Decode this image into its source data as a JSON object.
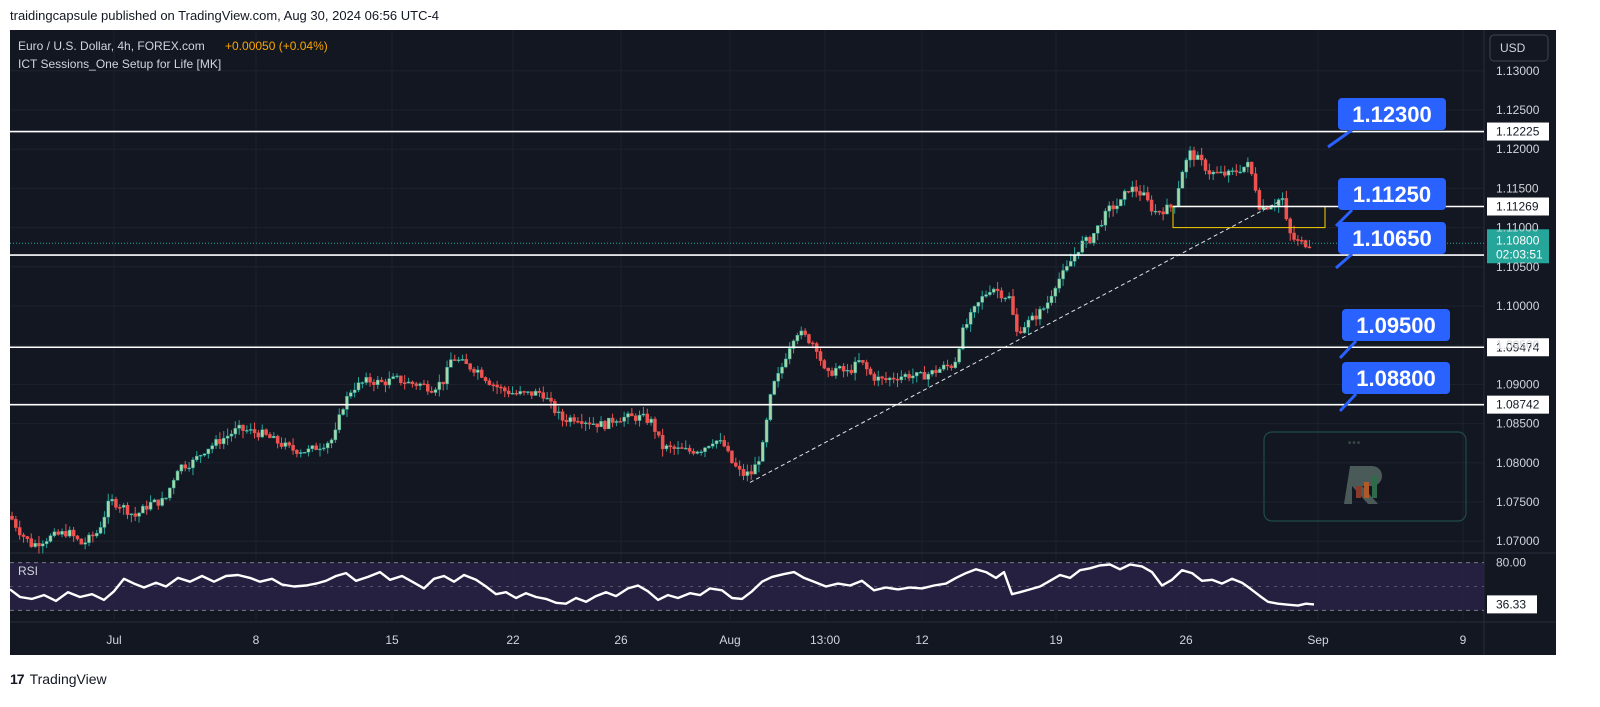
{
  "header": {
    "published_text": "traidingcapsule published on TradingView.com, Aug 30, 2024 06:56 UTC-4"
  },
  "legend": {
    "symbol_text": "Euro / U.S. Dollar, 4h, FOREX.com",
    "change_text": "+0.00050 (+0.04%)",
    "indicator_text": "ICT Sessions_One Setup for Life [MK]"
  },
  "currency_button": "USD",
  "rsi_label": "RSI",
  "footer": {
    "logo_mark": "17",
    "brand": "TradingView"
  },
  "colors": {
    "background": "#131722",
    "up": "#26a69a",
    "up_body": "#a5d6a7",
    "down": "#ef5350",
    "label_blue": "#2962ff",
    "rsi_band": "#2a2348",
    "change_orange": "#f7a600",
    "price_tag": "#26a69a"
  },
  "chart_data": {
    "type": "candlestick",
    "symbol": "EURUSD",
    "timeframe": "4h",
    "y_axis": {
      "ticks": [
        "1.13000",
        "1.12500",
        "1.12000",
        "1.11500",
        "1.11000",
        "1.10500",
        "1.10000",
        "1.09500",
        "1.09000",
        "1.08500",
        "1.08000",
        "1.07500",
        "1.07000"
      ],
      "ylim": [
        1.0685,
        1.1352
      ]
    },
    "x_axis": {
      "ticks": [
        "Jul",
        "8",
        "15",
        "22",
        "26",
        "Aug",
        "13:00",
        "12",
        "19",
        "26",
        "Sep",
        "9"
      ]
    },
    "price_path": [
      [
        0,
        1.0732
      ],
      [
        10,
        1.0712
      ],
      [
        22,
        1.0695
      ],
      [
        40,
        1.0705
      ],
      [
        58,
        1.0712
      ],
      [
        72,
        1.0696
      ],
      [
        88,
        1.0712
      ],
      [
        100,
        1.0752
      ],
      [
        112,
        1.0745
      ],
      [
        125,
        1.0732
      ],
      [
        140,
        1.0748
      ],
      [
        155,
        1.0752
      ],
      [
        168,
        1.0795
      ],
      [
        182,
        1.08
      ],
      [
        196,
        1.0818
      ],
      [
        212,
        1.083
      ],
      [
        228,
        1.0843
      ],
      [
        240,
        1.084
      ],
      [
        252,
        1.0837
      ],
      [
        268,
        1.0826
      ],
      [
        282,
        1.0817
      ],
      [
        298,
        1.0815
      ],
      [
        312,
        1.0823
      ],
      [
        324,
        1.0831
      ],
      [
        332,
        1.087
      ],
      [
        342,
        1.0895
      ],
      [
        358,
        1.0905
      ],
      [
        372,
        1.0902
      ],
      [
        386,
        1.0907
      ],
      [
        398,
        1.0902
      ],
      [
        410,
        1.09
      ],
      [
        422,
        1.0895
      ],
      [
        434,
        1.0905
      ],
      [
        442,
        1.0935
      ],
      [
        455,
        1.0925
      ],
      [
        468,
        1.0918
      ],
      [
        480,
        1.0903
      ],
      [
        492,
        1.0893
      ],
      [
        506,
        1.0888
      ],
      [
        520,
        1.0888
      ],
      [
        532,
        1.089
      ],
      [
        540,
        1.0875
      ],
      [
        552,
        1.0855
      ],
      [
        566,
        1.0858
      ],
      [
        580,
        1.0852
      ],
      [
        594,
        1.0848
      ],
      [
        606,
        1.0857
      ],
      [
        620,
        1.0858
      ],
      [
        632,
        1.0858
      ],
      [
        642,
        1.0852
      ],
      [
        652,
        1.082
      ],
      [
        666,
        1.0817
      ],
      [
        680,
        1.0815
      ],
      [
        692,
        1.0818
      ],
      [
        704,
        1.083
      ],
      [
        714,
        1.0822
      ],
      [
        722,
        1.08
      ],
      [
        732,
        1.0785
      ],
      [
        742,
        1.0787
      ],
      [
        752,
        1.0815
      ],
      [
        762,
        1.0895
      ],
      [
        770,
        1.0915
      ],
      [
        778,
        1.0945
      ],
      [
        786,
        1.0968
      ],
      [
        796,
        1.096
      ],
      [
        806,
        1.095
      ],
      [
        816,
        1.091
      ],
      [
        826,
        1.092
      ],
      [
        838,
        1.0915
      ],
      [
        850,
        1.093
      ],
      [
        862,
        1.091
      ],
      [
        874,
        1.0905
      ],
      [
        886,
        1.091
      ],
      [
        898,
        1.0912
      ],
      [
        910,
        1.091
      ],
      [
        922,
        1.0915
      ],
      [
        934,
        1.0922
      ],
      [
        944,
        1.0925
      ],
      [
        952,
        1.0965
      ],
      [
        962,
        1.099
      ],
      [
        972,
        1.101
      ],
      [
        982,
        1.1025
      ],
      [
        992,
        1.1015
      ],
      [
        1000,
        1.101
      ],
      [
        1006,
        1.0965
      ],
      [
        1014,
        1.0975
      ],
      [
        1024,
        1.0985
      ],
      [
        1036,
        1.1
      ],
      [
        1046,
        1.103
      ],
      [
        1056,
        1.1045
      ],
      [
        1064,
        1.1065
      ],
      [
        1072,
        1.108
      ],
      [
        1080,
        1.1085
      ],
      [
        1090,
        1.1105
      ],
      [
        1100,
        1.1125
      ],
      [
        1110,
        1.113
      ],
      [
        1118,
        1.115
      ],
      [
        1126,
        1.1148
      ],
      [
        1134,
        1.114
      ],
      [
        1144,
        1.112
      ],
      [
        1154,
        1.1123
      ],
      [
        1164,
        1.1128
      ],
      [
        1172,
        1.1172
      ],
      [
        1180,
        1.1195
      ],
      [
        1190,
        1.1185
      ],
      [
        1200,
        1.117
      ],
      [
        1210,
        1.1168
      ],
      [
        1220,
        1.1168
      ],
      [
        1230,
        1.1175
      ],
      [
        1238,
        1.118
      ],
      [
        1244,
        1.116
      ],
      [
        1250,
        1.1125
      ],
      [
        1258,
        1.1128
      ],
      [
        1266,
        1.1132
      ],
      [
        1272,
        1.114
      ],
      [
        1278,
        1.1095
      ],
      [
        1286,
        1.1082
      ],
      [
        1294,
        1.108
      ],
      [
        1304,
        1.108
      ]
    ],
    "horizontal_levels": [
      {
        "value": 1.12225,
        "label": "1.12225"
      },
      {
        "value": 1.11269,
        "label": "1.11269"
      },
      {
        "value": 1.1065,
        "label": ""
      },
      {
        "value": 1.09474,
        "label": "1.09474"
      },
      {
        "value": 1.08742,
        "label": "1.08742"
      }
    ],
    "callouts": [
      "1.12300",
      "1.11250",
      "1.10650",
      "1.09500",
      "1.08800"
    ],
    "current_price": {
      "value": 1.108,
      "label": "1.10800",
      "countdown": "02:03:51"
    },
    "trendline": {
      "from": [
        740,
        1.0775
      ],
      "to": [
        1272,
        1.1135
      ]
    },
    "rsi": {
      "ylim": [
        20,
        90
      ],
      "upper_level": 80.0,
      "upper_label": "80.00",
      "lower_level": 30,
      "current": 36.33,
      "current_label": "36.33",
      "values": [
        [
          0,
          52
        ],
        [
          10,
          44
        ],
        [
          22,
          42
        ],
        [
          34,
          46
        ],
        [
          46,
          40
        ],
        [
          58,
          49
        ],
        [
          70,
          44
        ],
        [
          82,
          47
        ],
        [
          94,
          41
        ],
        [
          104,
          50
        ],
        [
          114,
          63
        ],
        [
          124,
          58
        ],
        [
          134,
          54
        ],
        [
          146,
          59
        ],
        [
          156,
          55
        ],
        [
          168,
          64
        ],
        [
          180,
          60
        ],
        [
          192,
          66
        ],
        [
          204,
          60
        ],
        [
          216,
          66
        ],
        [
          228,
          67
        ],
        [
          240,
          64
        ],
        [
          250,
          60
        ],
        [
          262,
          63
        ],
        [
          272,
          57
        ],
        [
          284,
          55
        ],
        [
          296,
          56
        ],
        [
          306,
          58
        ],
        [
          316,
          61
        ],
        [
          326,
          66
        ],
        [
          336,
          69
        ],
        [
          346,
          61
        ],
        [
          358,
          65
        ],
        [
          370,
          70
        ],
        [
          380,
          62
        ],
        [
          392,
          66
        ],
        [
          404,
          59
        ],
        [
          414,
          53
        ],
        [
          424,
          63
        ],
        [
          434,
          66
        ],
        [
          444,
          60
        ],
        [
          454,
          67
        ],
        [
          466,
          62
        ],
        [
          476,
          55
        ],
        [
          486,
          47
        ],
        [
          496,
          49
        ],
        [
          506,
          43
        ],
        [
          516,
          48
        ],
        [
          526,
          44
        ],
        [
          536,
          42
        ],
        [
          546,
          38
        ],
        [
          556,
          37
        ],
        [
          566,
          43
        ],
        [
          576,
          39
        ],
        [
          586,
          45
        ],
        [
          596,
          49
        ],
        [
          606,
          45
        ],
        [
          618,
          53
        ],
        [
          628,
          56
        ],
        [
          638,
          50
        ],
        [
          648,
          41
        ],
        [
          658,
          46
        ],
        [
          668,
          43
        ],
        [
          680,
          48
        ],
        [
          690,
          46
        ],
        [
          700,
          53
        ],
        [
          712,
          51
        ],
        [
          722,
          43
        ],
        [
          732,
          42
        ],
        [
          742,
          50
        ],
        [
          752,
          60
        ],
        [
          762,
          65
        ],
        [
          774,
          68
        ],
        [
          784,
          70
        ],
        [
          794,
          64
        ],
        [
          804,
          60
        ],
        [
          816,
          55
        ],
        [
          828,
          58
        ],
        [
          840,
          56
        ],
        [
          852,
          61
        ],
        [
          864,
          51
        ],
        [
          876,
          54
        ],
        [
          888,
          52
        ],
        [
          900,
          54
        ],
        [
          912,
          53
        ],
        [
          924,
          56
        ],
        [
          936,
          58
        ],
        [
          946,
          64
        ],
        [
          956,
          69
        ],
        [
          966,
          73
        ],
        [
          976,
          70
        ],
        [
          986,
          64
        ],
        [
          994,
          70
        ],
        [
          1002,
          47
        ],
        [
          1010,
          49
        ],
        [
          1020,
          52
        ],
        [
          1030,
          55
        ],
        [
          1040,
          61
        ],
        [
          1050,
          67
        ],
        [
          1060,
          64
        ],
        [
          1070,
          72
        ],
        [
          1080,
          74
        ],
        [
          1090,
          77
        ],
        [
          1100,
          78
        ],
        [
          1110,
          73
        ],
        [
          1120,
          78
        ],
        [
          1132,
          76
        ],
        [
          1142,
          70
        ],
        [
          1152,
          56
        ],
        [
          1162,
          62
        ],
        [
          1172,
          72
        ],
        [
          1182,
          69
        ],
        [
          1192,
          61
        ],
        [
          1202,
          62
        ],
        [
          1212,
          58
        ],
        [
          1222,
          63
        ],
        [
          1232,
          59
        ],
        [
          1240,
          53
        ],
        [
          1250,
          45
        ],
        [
          1258,
          39
        ],
        [
          1268,
          37
        ],
        [
          1278,
          36
        ],
        [
          1288,
          35
        ],
        [
          1296,
          37
        ],
        [
          1304,
          36.33
        ]
      ]
    },
    "watermark": "logo"
  }
}
